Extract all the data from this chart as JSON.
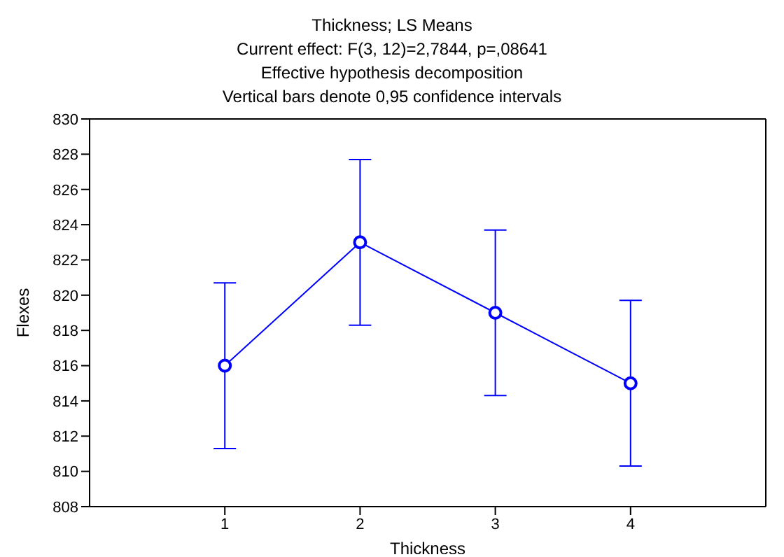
{
  "chart_data": {
    "type": "line",
    "title": "Thickness; LS Means",
    "subtitle": "Current effect: F(3, 12)=2,7844, p=,08641",
    "annotations": [
      "Effective hypothesis decomposition",
      "Vertical bars denote 0,95 confidence intervals"
    ],
    "xlabel": "Thickness",
    "ylabel": "Flexes",
    "x": [
      1,
      2,
      3,
      4
    ],
    "series": [
      {
        "color": "#0000ff",
        "values": [
          816,
          823,
          819,
          815
        ],
        "errors": [
          4.7,
          4.7,
          4.7,
          4.7
        ]
      }
    ],
    "xlim": [
      0,
      5
    ],
    "xticks": [
      1,
      2,
      3,
      4
    ],
    "ylim": [
      808,
      830
    ],
    "yticks": [
      808,
      810,
      812,
      814,
      816,
      818,
      820,
      822,
      824,
      826,
      828,
      830
    ],
    "marker": "circle",
    "line_style": "solid",
    "grid": false,
    "legend": false
  }
}
